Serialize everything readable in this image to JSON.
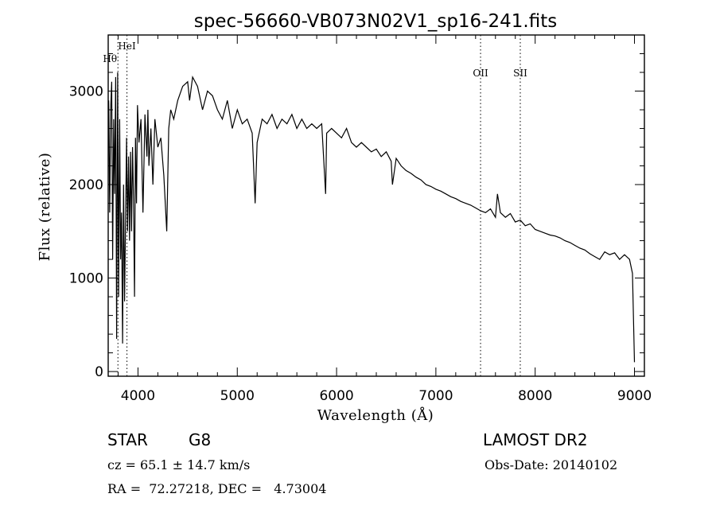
{
  "chart_data": {
    "type": "line",
    "title": "spec-56660-VB073N02V1_sp16-241.fits",
    "xlabel": "Wavelength (Å)",
    "ylabel": "Flux (relative)",
    "xlim": [
      3700,
      9100
    ],
    "ylim": [
      -50,
      3600
    ],
    "xticks": [
      4000,
      5000,
      6000,
      7000,
      8000,
      9000
    ],
    "yticks": [
      0,
      1000,
      2000,
      3000
    ],
    "grid": false,
    "lines": [
      {
        "label": "HeI",
        "x": 3889
      },
      {
        "label": "Hθ",
        "x": 3798
      },
      {
        "label": "OII",
        "x": 7450
      },
      {
        "label": "SII",
        "x": 7850
      }
    ],
    "series": [
      {
        "x": [
          3705,
          3715,
          3725,
          3735,
          3745,
          3755,
          3765,
          3775,
          3785,
          3795,
          3805,
          3815,
          3825,
          3835,
          3845,
          3855,
          3865,
          3875,
          3885,
          3895,
          3905,
          3915,
          3925,
          3935,
          3945,
          3955,
          3965,
          3975,
          3985,
          3995,
          4010,
          4030,
          4050,
          4070,
          4090,
          4100,
          4110,
          4130,
          4150,
          4170,
          4200,
          4230,
          4260,
          4290,
          4310,
          4330,
          4360,
          4400,
          4450,
          4500,
          4520,
          4550,
          4600,
          4650,
          4700,
          4750,
          4800,
          4850,
          4900,
          4950,
          5000,
          5050,
          5100,
          5150,
          5180,
          5200,
          5250,
          5300,
          5350,
          5400,
          5450,
          5500,
          5550,
          5600,
          5650,
          5700,
          5750,
          5800,
          5850,
          5890,
          5900,
          5950,
          6000,
          6050,
          6100,
          6150,
          6200,
          6250,
          6300,
          6350,
          6400,
          6450,
          6500,
          6550,
          6563,
          6600,
          6650,
          6700,
          6750,
          6800,
          6850,
          6900,
          6950,
          7000,
          7050,
          7100,
          7150,
          7200,
          7250,
          7300,
          7350,
          7400,
          7450,
          7500,
          7550,
          7600,
          7620,
          7650,
          7700,
          7750,
          7800,
          7850,
          7900,
          7950,
          8000,
          8050,
          8100,
          8150,
          8200,
          8250,
          8300,
          8350,
          8400,
          8450,
          8500,
          8550,
          8600,
          8650,
          8700,
          8750,
          8800,
          8850,
          8900,
          8950,
          8980,
          9000
        ],
        "y": [
          2900,
          1700,
          2800,
          3100,
          1200,
          2700,
          1900,
          3150,
          350,
          3200,
          800,
          2700,
          1200,
          1700,
          300,
          2000,
          750,
          1600,
          2500,
          1500,
          2300,
          1400,
          2350,
          1500,
          2400,
          1850,
          800,
          2500,
          1800,
          2850,
          2450,
          2700,
          1700,
          2750,
          2300,
          2800,
          2200,
          2600,
          2000,
          2700,
          2400,
          2500,
          2100,
          1500,
          2600,
          2800,
          2700,
          2900,
          3050,
          3100,
          2900,
          3150,
          3050,
          2800,
          3000,
          2950,
          2800,
          2700,
          2900,
          2600,
          2800,
          2650,
          2700,
          2550,
          1800,
          2450,
          2700,
          2650,
          2750,
          2600,
          2700,
          2650,
          2750,
          2600,
          2700,
          2600,
          2650,
          2600,
          2650,
          1900,
          2550,
          2600,
          2550,
          2500,
          2600,
          2450,
          2400,
          2450,
          2400,
          2350,
          2380,
          2300,
          2350,
          2250,
          2000,
          2280,
          2200,
          2150,
          2120,
          2080,
          2050,
          2000,
          1980,
          1950,
          1930,
          1900,
          1870,
          1850,
          1820,
          1800,
          1780,
          1750,
          1720,
          1700,
          1740,
          1650,
          1900,
          1700,
          1650,
          1690,
          1600,
          1620,
          1560,
          1580,
          1520,
          1500,
          1480,
          1460,
          1450,
          1430,
          1400,
          1380,
          1350,
          1320,
          1300,
          1260,
          1230,
          1200,
          1280,
          1250,
          1270,
          1200,
          1250,
          1200,
          1050,
          100
        ]
      }
    ]
  },
  "info": {
    "object_class": "STAR",
    "subclass": "G8",
    "survey": "LAMOST DR2",
    "cz": "cz = 65.1 ± 14.7 km/s",
    "obs_date": "Obs-Date: 20140102",
    "coords": "RA =  72.27218, DEC =   4.73004"
  }
}
